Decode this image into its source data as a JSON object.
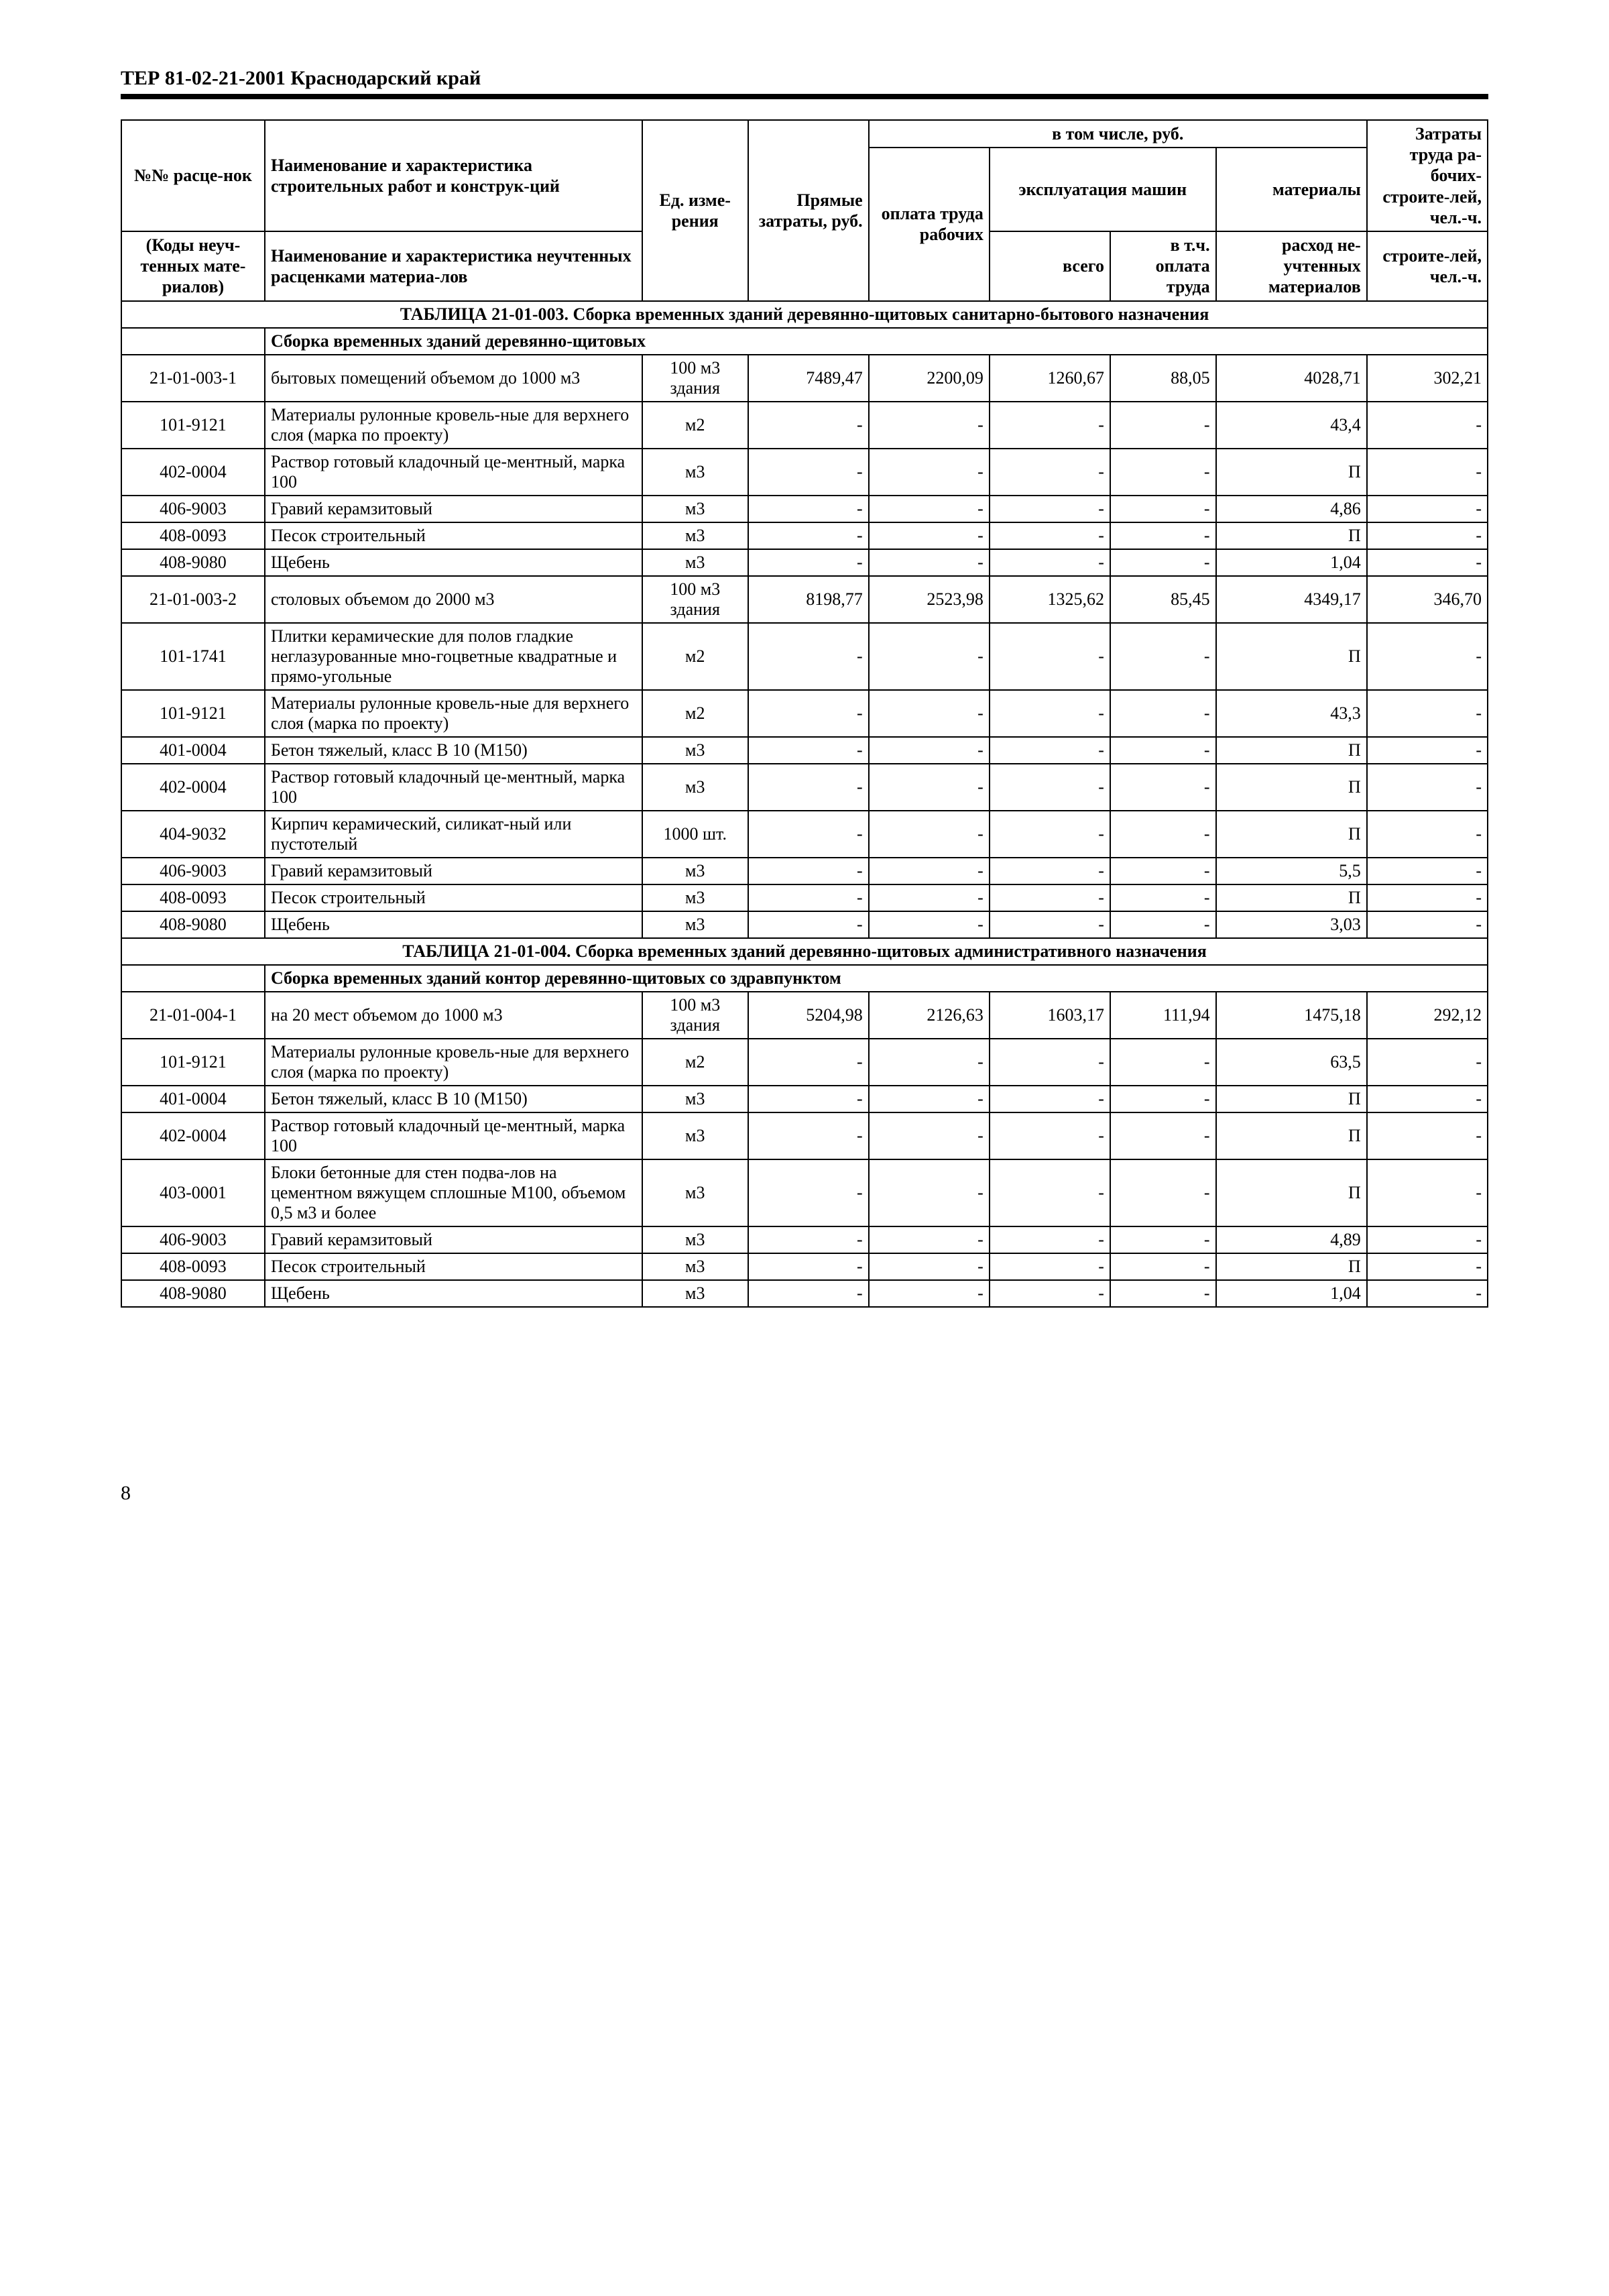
{
  "header": "ТЕР 81-02-21-2001  Краснодарский край",
  "page_number": "8",
  "head": {
    "col1a": "№№ расце-нок",
    "col1b": "(Коды неуч-тенных мате-риалов)",
    "col2a": "Наименование и характеристика строительных работ и конструк-ций",
    "col2b": "Наименование и характеристика неучтенных расценками материа-лов",
    "col3": "Ед. изме-рения",
    "col4": "Прямые затраты, руб.",
    "group": "в том числе, руб.",
    "g1": "оплата труда рабочих",
    "g2": "эксплуатация машин",
    "g2a": "всего",
    "g2b": "в т.ч. оплата труда",
    "g3": "материалы",
    "g3a": "расход не-учтенных материалов",
    "col5": "Затраты труда ра-бочих-строите-лей, чел.-ч."
  },
  "sec1": {
    "title": "ТАБЛИЦА  21-01-003.  Сборка временных зданий деревянно-щитовых санитарно-бытового назначения",
    "sub": "Сборка временных зданий деревянно-щитовых"
  },
  "r": {
    "a1": {
      "c": "21-01-003-1",
      "n": "бытовых помещений объемом до 1000 м3",
      "u": "100 м3 здания",
      "v1": "7489,47",
      "v2": "2200,09",
      "v3": "1260,67",
      "v4": "88,05",
      "v5": "4028,71",
      "v6": "302,21"
    },
    "a2": {
      "c": "101-9121",
      "n": "Материалы рулонные кровель-ные для верхнего слоя (марка по проекту)",
      "u": "м2",
      "v1": "-",
      "v2": "-",
      "v3": "-",
      "v4": "-",
      "v5": "43,4",
      "v6": "-"
    },
    "a3": {
      "c": "402-0004",
      "n": "Раствор готовый кладочный це-ментный, марка 100",
      "u": "м3",
      "v1": "-",
      "v2": "-",
      "v3": "-",
      "v4": "-",
      "v5": "П",
      "v6": "-"
    },
    "a4": {
      "c": "406-9003",
      "n": "Гравий керамзитовый",
      "u": "м3",
      "v1": "-",
      "v2": "-",
      "v3": "-",
      "v4": "-",
      "v5": "4,86",
      "v6": "-"
    },
    "a5": {
      "c": "408-0093",
      "n": "Песок строительный",
      "u": "м3",
      "v1": "-",
      "v2": "-",
      "v3": "-",
      "v4": "-",
      "v5": "П",
      "v6": "-"
    },
    "a6": {
      "c": "408-9080",
      "n": "Щебень",
      "u": "м3",
      "v1": "-",
      "v2": "-",
      "v3": "-",
      "v4": "-",
      "v5": "1,04",
      "v6": "-"
    },
    "b1": {
      "c": "21-01-003-2",
      "n": "столовых объемом до 2000 м3",
      "u": "100 м3 здания",
      "v1": "8198,77",
      "v2": "2523,98",
      "v3": "1325,62",
      "v4": "85,45",
      "v5": "4349,17",
      "v6": "346,70"
    },
    "b2": {
      "c": "101-1741",
      "n": "Плитки керамические для полов гладкие неглазурованные мно-гоцветные квадратные и прямо-угольные",
      "u": "м2",
      "v1": "-",
      "v2": "-",
      "v3": "-",
      "v4": "-",
      "v5": "П",
      "v6": "-"
    },
    "b3": {
      "c": "101-9121",
      "n": "Материалы рулонные кровель-ные для верхнего слоя (марка по проекту)",
      "u": "м2",
      "v1": "-",
      "v2": "-",
      "v3": "-",
      "v4": "-",
      "v5": "43,3",
      "v6": "-"
    },
    "b4": {
      "c": "401-0004",
      "n": "Бетон тяжелый, класс В 10 (М150)",
      "u": "м3",
      "v1": "-",
      "v2": "-",
      "v3": "-",
      "v4": "-",
      "v5": "П",
      "v6": "-"
    },
    "b5": {
      "c": "402-0004",
      "n": "Раствор готовый кладочный це-ментный, марка 100",
      "u": "м3",
      "v1": "-",
      "v2": "-",
      "v3": "-",
      "v4": "-",
      "v5": "П",
      "v6": "-"
    },
    "b6": {
      "c": "404-9032",
      "n": "Кирпич керамический, силикат-ный или пустотелый",
      "u": "1000 шт.",
      "v1": "-",
      "v2": "-",
      "v3": "-",
      "v4": "-",
      "v5": "П",
      "v6": "-"
    },
    "b7": {
      "c": "406-9003",
      "n": "Гравий керамзитовый",
      "u": "м3",
      "v1": "-",
      "v2": "-",
      "v3": "-",
      "v4": "-",
      "v5": "5,5",
      "v6": "-"
    },
    "b8": {
      "c": "408-0093",
      "n": "Песок строительный",
      "u": "м3",
      "v1": "-",
      "v2": "-",
      "v3": "-",
      "v4": "-",
      "v5": "П",
      "v6": "-"
    },
    "b9": {
      "c": "408-9080",
      "n": "Щебень",
      "u": "м3",
      "v1": "-",
      "v2": "-",
      "v3": "-",
      "v4": "-",
      "v5": "3,03",
      "v6": "-"
    }
  },
  "sec2": {
    "title": "ТАБЛИЦА  21-01-004.  Сборка временных зданий деревянно-щитовых административного назначения",
    "sub": "Сборка временных зданий контор деревянно-щитовых со здравпунктом"
  },
  "s": {
    "c1": {
      "c": "21-01-004-1",
      "n": "на 20 мест объемом до 1000 м3",
      "u": "100 м3 здания",
      "v1": "5204,98",
      "v2": "2126,63",
      "v3": "1603,17",
      "v4": "111,94",
      "v5": "1475,18",
      "v6": "292,12"
    },
    "c2": {
      "c": "101-9121",
      "n": "Материалы рулонные кровель-ные для верхнего слоя (марка по проекту)",
      "u": "м2",
      "v1": "-",
      "v2": "-",
      "v3": "-",
      "v4": "-",
      "v5": "63,5",
      "v6": "-"
    },
    "c3": {
      "c": "401-0004",
      "n": "Бетон тяжелый, класс В 10 (М150)",
      "u": "м3",
      "v1": "-",
      "v2": "-",
      "v3": "-",
      "v4": "-",
      "v5": "П",
      "v6": "-"
    },
    "c4": {
      "c": "402-0004",
      "n": "Раствор готовый кладочный це-ментный, марка 100",
      "u": "м3",
      "v1": "-",
      "v2": "-",
      "v3": "-",
      "v4": "-",
      "v5": "П",
      "v6": "-"
    },
    "c5": {
      "c": "403-0001",
      "n": "Блоки бетонные для стен подва-лов на цементном вяжущем сплошные М100, объемом 0,5 м3 и более",
      "u": "м3",
      "v1": "-",
      "v2": "-",
      "v3": "-",
      "v4": "-",
      "v5": "П",
      "v6": "-"
    },
    "c6": {
      "c": "406-9003",
      "n": "Гравий керамзитовый",
      "u": "м3",
      "v1": "-",
      "v2": "-",
      "v3": "-",
      "v4": "-",
      "v5": "4,89",
      "v6": "-"
    },
    "c7": {
      "c": "408-0093",
      "n": "Песок строительный",
      "u": "м3",
      "v1": "-",
      "v2": "-",
      "v3": "-",
      "v4": "-",
      "v5": "П",
      "v6": "-"
    },
    "c8": {
      "c": "408-9080",
      "n": "Щебень",
      "u": "м3",
      "v1": "-",
      "v2": "-",
      "v3": "-",
      "v4": "-",
      "v5": "1,04",
      "v6": "-"
    }
  }
}
